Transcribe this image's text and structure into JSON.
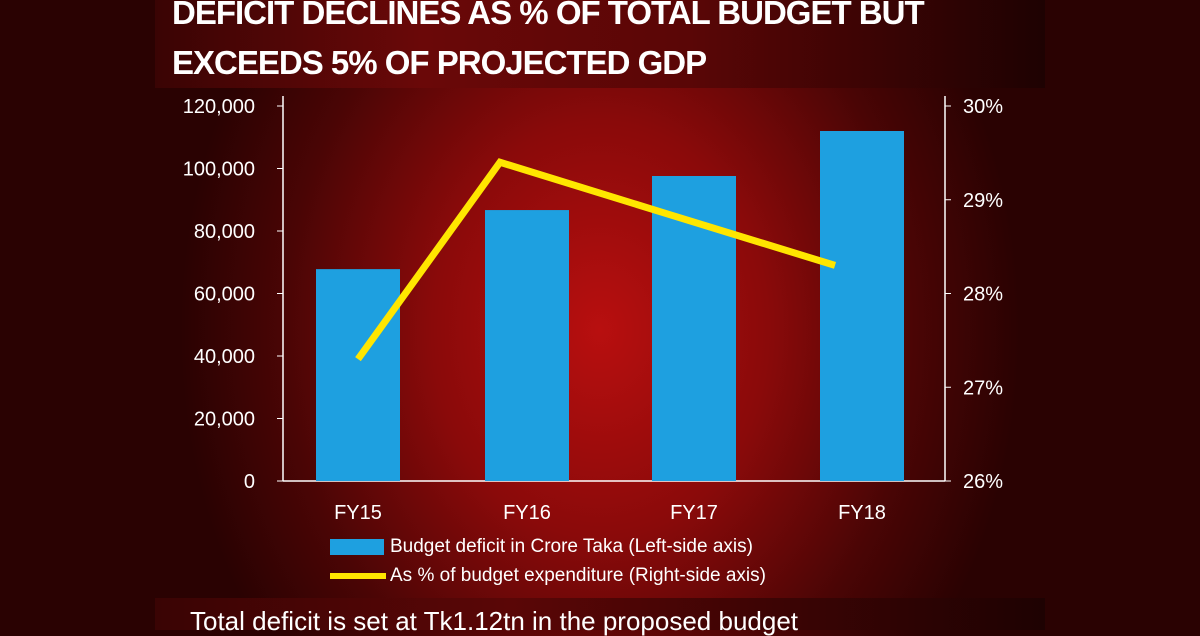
{
  "title": "DEFICIT DECLINES AS % OF TOTAL BUDGET BUT EXCEEDS 5% OF PROJECTED GDP",
  "footer": "Total deficit is set at Tk1.12tn in the proposed budget",
  "chart_data": {
    "type": "bar",
    "title": "DEFICIT DECLINES AS % OF TOTAL BUDGET BUT EXCEEDS 5% OF PROJECTED GDP",
    "categories": [
      "FY15",
      "FY16",
      "FY17",
      "FY18"
    ],
    "series": [
      {
        "name": "Budget deficit in Crore Taka (Left-side axis)",
        "type": "bar",
        "axis": "left",
        "color": "#1ea0e0",
        "values": [
          67800,
          86700,
          97600,
          112000
        ]
      },
      {
        "name": "As % of budget expenditure (Right-side axis)",
        "type": "line",
        "axis": "right",
        "color": "#ffe600",
        "values": [
          27.3,
          29.4,
          28.85,
          28.3
        ]
      }
    ],
    "left_axis": {
      "ylim": [
        0,
        120000
      ],
      "ticks": [
        "0",
        "20,000",
        "40,000",
        "60,000",
        "80,000",
        "100,000",
        "120,000"
      ]
    },
    "right_axis": {
      "ylim": [
        26,
        30
      ],
      "ticks": [
        "26%",
        "27%",
        "28%",
        "29%",
        "30%"
      ]
    },
    "grid": false,
    "legend_position": "bottom"
  }
}
